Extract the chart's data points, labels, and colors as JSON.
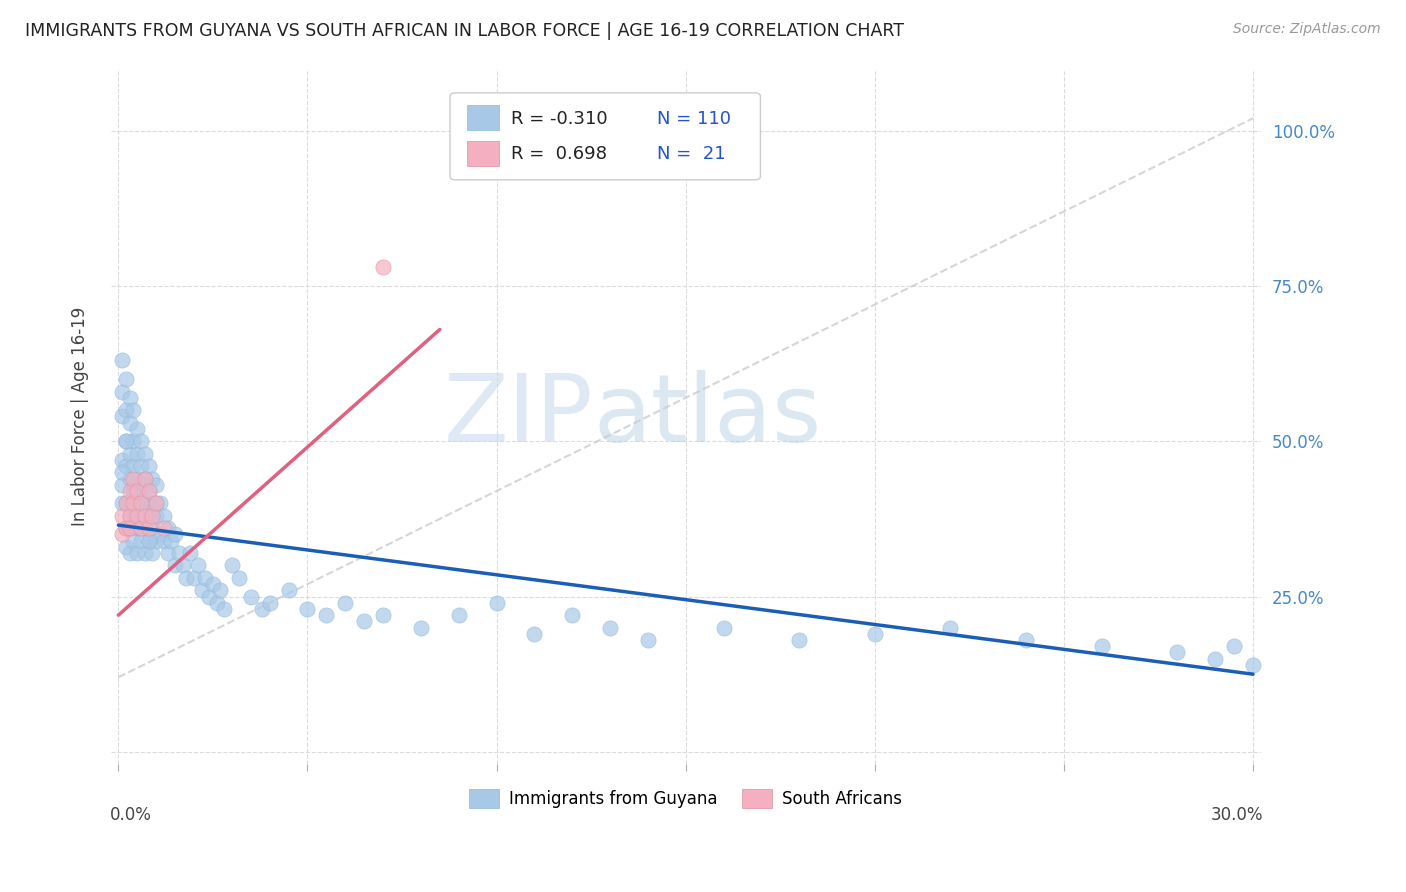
{
  "title": "IMMIGRANTS FROM GUYANA VS SOUTH AFRICAN IN LABOR FORCE | AGE 16-19 CORRELATION CHART",
  "source": "Source: ZipAtlas.com",
  "ylabel": "In Labor Force | Age 16-19",
  "right_yticklabels": [
    "25.0%",
    "50.0%",
    "75.0%",
    "100.0%"
  ],
  "right_ytick_vals": [
    0.25,
    0.5,
    0.75,
    1.0
  ],
  "legend_r_blue": "-0.310",
  "legend_n_blue": "110",
  "legend_r_pink": "0.698",
  "legend_n_pink": "21",
  "blue_color": "#a8c8e8",
  "pink_color": "#f4b0c0",
  "blue_line_color": "#1a5fb4",
  "pink_line_color": "#e06080",
  "blue_label": "Immigrants from Guyana",
  "pink_label": "South Africans",
  "watermark_zip": "ZIP",
  "watermark_atlas": "atlas",
  "background_color": "#ffffff",
  "grid_color": "#d8d8d8",
  "blue_scatter_x": [
    0.001,
    0.001,
    0.001,
    0.001,
    0.001,
    0.001,
    0.002,
    0.002,
    0.002,
    0.002,
    0.002,
    0.002,
    0.002,
    0.003,
    0.003,
    0.003,
    0.003,
    0.003,
    0.003,
    0.003,
    0.004,
    0.004,
    0.004,
    0.004,
    0.004,
    0.004,
    0.005,
    0.005,
    0.005,
    0.005,
    0.005,
    0.005,
    0.006,
    0.006,
    0.006,
    0.006,
    0.006,
    0.007,
    0.007,
    0.007,
    0.007,
    0.007,
    0.008,
    0.008,
    0.008,
    0.008,
    0.009,
    0.009,
    0.009,
    0.009,
    0.01,
    0.01,
    0.01,
    0.011,
    0.011,
    0.012,
    0.012,
    0.013,
    0.013,
    0.014,
    0.015,
    0.015,
    0.016,
    0.017,
    0.018,
    0.019,
    0.02,
    0.021,
    0.022,
    0.023,
    0.024,
    0.025,
    0.026,
    0.027,
    0.028,
    0.03,
    0.032,
    0.035,
    0.038,
    0.04,
    0.045,
    0.05,
    0.055,
    0.06,
    0.065,
    0.07,
    0.08,
    0.09,
    0.1,
    0.11,
    0.12,
    0.13,
    0.14,
    0.16,
    0.18,
    0.2,
    0.22,
    0.24,
    0.26,
    0.28,
    0.29,
    0.295,
    0.3,
    0.001,
    0.002,
    0.003,
    0.004,
    0.006,
    0.008,
    0.01
  ],
  "blue_scatter_y": [
    0.63,
    0.58,
    0.54,
    0.47,
    0.43,
    0.4,
    0.6,
    0.55,
    0.5,
    0.46,
    0.4,
    0.36,
    0.33,
    0.57,
    0.53,
    0.48,
    0.44,
    0.4,
    0.36,
    0.32,
    0.55,
    0.5,
    0.46,
    0.42,
    0.38,
    0.34,
    0.52,
    0.48,
    0.44,
    0.4,
    0.36,
    0.32,
    0.5,
    0.46,
    0.42,
    0.38,
    0.34,
    0.48,
    0.44,
    0.4,
    0.36,
    0.32,
    0.46,
    0.42,
    0.38,
    0.34,
    0.44,
    0.4,
    0.36,
    0.32,
    0.43,
    0.38,
    0.34,
    0.4,
    0.35,
    0.38,
    0.34,
    0.36,
    0.32,
    0.34,
    0.35,
    0.3,
    0.32,
    0.3,
    0.28,
    0.32,
    0.28,
    0.3,
    0.26,
    0.28,
    0.25,
    0.27,
    0.24,
    0.26,
    0.23,
    0.3,
    0.28,
    0.25,
    0.23,
    0.24,
    0.26,
    0.23,
    0.22,
    0.24,
    0.21,
    0.22,
    0.2,
    0.22,
    0.24,
    0.19,
    0.22,
    0.2,
    0.18,
    0.2,
    0.18,
    0.19,
    0.2,
    0.18,
    0.17,
    0.16,
    0.15,
    0.17,
    0.14,
    0.45,
    0.5,
    0.38,
    0.42,
    0.36,
    0.34,
    0.4
  ],
  "pink_scatter_x": [
    0.001,
    0.001,
    0.002,
    0.002,
    0.003,
    0.003,
    0.003,
    0.004,
    0.004,
    0.005,
    0.005,
    0.006,
    0.006,
    0.007,
    0.007,
    0.008,
    0.008,
    0.009,
    0.01,
    0.012,
    0.07
  ],
  "pink_scatter_y": [
    0.35,
    0.38,
    0.36,
    0.4,
    0.38,
    0.42,
    0.36,
    0.4,
    0.44,
    0.38,
    0.42,
    0.4,
    0.36,
    0.44,
    0.38,
    0.36,
    0.42,
    0.38,
    0.4,
    0.36,
    0.78
  ],
  "blue_trend_x": [
    0.0,
    0.3
  ],
  "blue_trend_y": [
    0.365,
    0.125
  ],
  "pink_trend_x": [
    0.0,
    0.085
  ],
  "pink_trend_y": [
    0.22,
    0.68
  ],
  "dash_trend_x": [
    0.0,
    0.3
  ],
  "dash_trend_y": [
    0.12,
    1.02
  ],
  "xlim": [
    -0.002,
    0.302
  ],
  "ylim": [
    -0.02,
    1.1
  ],
  "xtick_positions": [
    0.0,
    0.05,
    0.1,
    0.15,
    0.2,
    0.25,
    0.3
  ]
}
